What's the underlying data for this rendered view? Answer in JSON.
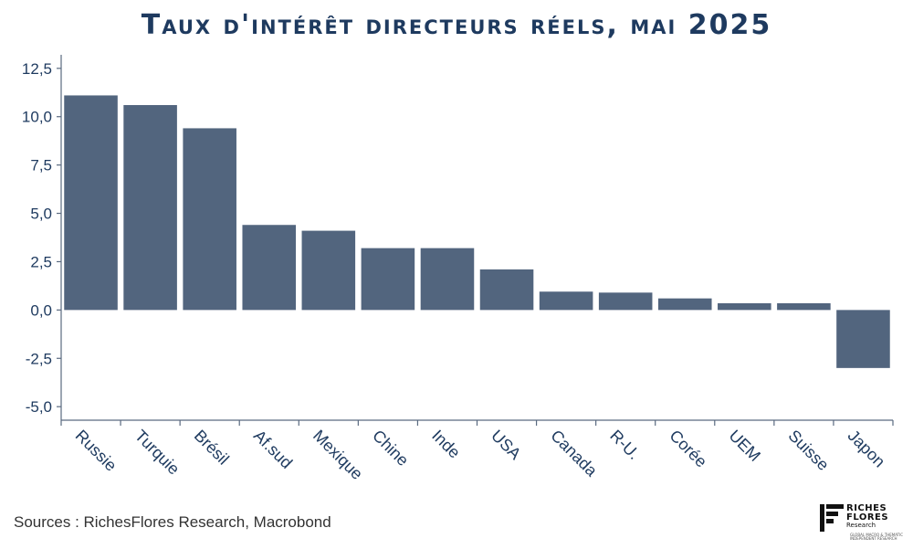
{
  "chart_data": {
    "type": "bar",
    "title": "Taux d'intérêt directeurs réels, mai 2025",
    "categories": [
      "Russie",
      "Turquie",
      "Brésil",
      "Af.sud",
      "Mexique",
      "Chine",
      "Inde",
      "USA",
      "Canada",
      "R-U.",
      "Corée",
      "UEM",
      "Suisse",
      "Japon"
    ],
    "values": [
      11.1,
      10.6,
      9.4,
      4.4,
      4.1,
      3.2,
      3.2,
      2.1,
      0.95,
      0.9,
      0.6,
      0.35,
      0.35,
      -3.0
    ],
    "ylim": [
      -5.7,
      13.2
    ],
    "yticks": [
      -5.0,
      -2.5,
      0.0,
      2.5,
      5.0,
      7.5,
      10.0,
      12.5
    ],
    "ytick_labels": [
      "-5,0",
      "-2,5",
      "0,0",
      "2,5",
      "5,0",
      "7,5",
      "10,0",
      "12,5"
    ],
    "xlabel": "",
    "ylabel": "",
    "bar_color": "#52657e",
    "axis_color": "#5a6a80",
    "label_color": "#1e3a5f",
    "grid": false,
    "legend": "none"
  },
  "source_text": "Sources : RichesFlores Research, Macrobond",
  "logo": {
    "line1": "RICHES",
    "line2": "FLORES",
    "line3": "Research",
    "tagline": "GLOBAL MACRO & THEMATIC INDEPENDENT RESEARCH"
  }
}
